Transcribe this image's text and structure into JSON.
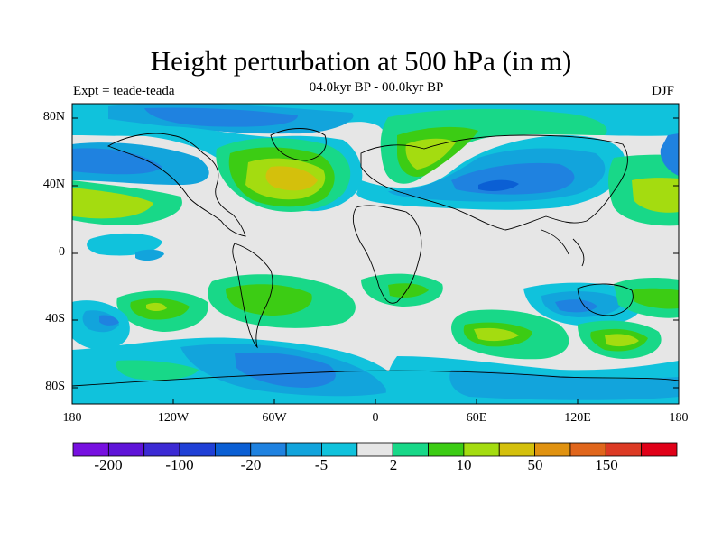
{
  "title": "Height perturbation at 500 hPa (in m)",
  "left_label": "Expt = teade-teada",
  "center_label": "04.0kyr BP - 00.0kyr BP",
  "right_label": "DJF",
  "lat_ticks": [
    "80N",
    "40N",
    "0",
    "40S",
    "80S"
  ],
  "lon_ticks": [
    "180",
    "120W",
    "60W",
    "0",
    "60E",
    "120E",
    "180"
  ],
  "colorbar": {
    "colors": [
      "#7710e0",
      "#5f14d8",
      "#3c2ad4",
      "#2040d6",
      "#0b5fd4",
      "#1f82e0",
      "#12a4dc",
      "#10c2dc",
      "#e6e6e6",
      "#18d888",
      "#3ccc14",
      "#a4dc10",
      "#d4c00c",
      "#e09210",
      "#e0661c",
      "#dc3a24",
      "#e00018"
    ],
    "labels": [
      "-200",
      "-100",
      "-20",
      "-5",
      "2",
      "10",
      "50",
      "150"
    ]
  }
}
